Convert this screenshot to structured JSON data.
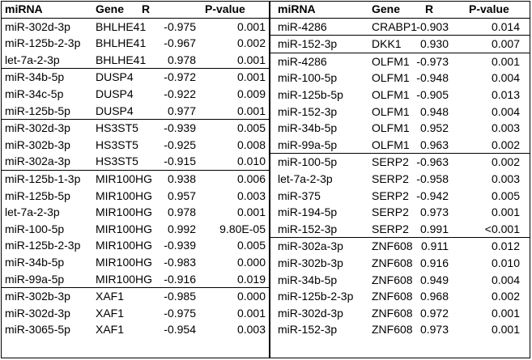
{
  "headers": {
    "mirna": "miRNA",
    "gene": "Gene",
    "r": "R",
    "p": "P-value"
  },
  "left": [
    {
      "mirna": "miR-302d-3p",
      "gene": "BHLHE41",
      "r": "-0.975",
      "p": "0.001",
      "sep": false
    },
    {
      "mirna": "miR-125b-2-3p",
      "gene": "BHLHE41",
      "r": "-0.967",
      "p": "0.002",
      "sep": false
    },
    {
      "mirna": "let-7a-2-3p",
      "gene": "BHLHE41",
      "r": "0.978",
      "p": "0.001",
      "sep": false
    },
    {
      "mirna": "miR-34b-5p",
      "gene": "DUSP4",
      "r": "-0.972",
      "p": "0.001",
      "sep": true
    },
    {
      "mirna": "miR-34c-5p",
      "gene": "DUSP4",
      "r": "-0.922",
      "p": "0.009",
      "sep": false
    },
    {
      "mirna": "miR-125b-5p",
      "gene": "DUSP4",
      "r": "0.977",
      "p": "0.001",
      "sep": false
    },
    {
      "mirna": "miR-302d-3p",
      "gene": "HS3ST5",
      "r": "-0.939",
      "p": "0.005",
      "sep": true
    },
    {
      "mirna": "miR-302b-3p",
      "gene": "HS3ST5",
      "r": "-0.925",
      "p": "0.008",
      "sep": false
    },
    {
      "mirna": "miR-302a-3p",
      "gene": "HS3ST5",
      "r": "-0.915",
      "p": "0.010",
      "sep": false
    },
    {
      "mirna": "miR-125b-1-3p",
      "gene": "MIR100HG",
      "r": "0.938",
      "p": "0.006",
      "sep": true
    },
    {
      "mirna": "miR-125b-5p",
      "gene": "MIR100HG",
      "r": "0.957",
      "p": "0.003",
      "sep": false
    },
    {
      "mirna": "let-7a-2-3p",
      "gene": "MIR100HG",
      "r": "0.978",
      "p": "0.001",
      "sep": false
    },
    {
      "mirna": "miR-100-5p",
      "gene": "MIR100HG",
      "r": "0.992",
      "p": "9.80E-05",
      "sep": false
    },
    {
      "mirna": "miR-125b-2-3p",
      "gene": "MIR100HG",
      "r": "-0.939",
      "p": "0.005",
      "sep": false
    },
    {
      "mirna": "miR-34b-5p",
      "gene": "MIR100HG",
      "r": "-0.983",
      "p": "0.000",
      "sep": false
    },
    {
      "mirna": "miR-99a-5p",
      "gene": "MIR100HG",
      "r": "-0.916",
      "p": "0.019",
      "sep": false
    },
    {
      "mirna": "miR-302b-3p",
      "gene": "XAF1",
      "r": "-0.985",
      "p": "0.000",
      "sep": true
    },
    {
      "mirna": "miR-302d-3p",
      "gene": "XAF1",
      "r": "-0.975",
      "p": "0.001",
      "sep": false
    },
    {
      "mirna": "miR-3065-5p",
      "gene": "XAF1",
      "r": "-0.954",
      "p": "0.003",
      "sep": false
    }
  ],
  "right": [
    {
      "mirna": "miR-4286",
      "gene": "CRABP1",
      "r": "-0.903",
      "p": "0.014",
      "sep": false
    },
    {
      "mirna": "miR-152-3p",
      "gene": "DKK1",
      "r": "0.930",
      "p": "0.007",
      "sep": true
    },
    {
      "mirna": "miR-4286",
      "gene": "OLFM1",
      "r": "-0.973",
      "p": "0.001",
      "sep": true
    },
    {
      "mirna": "miR-100-5p",
      "gene": "OLFM1",
      "r": "-0.948",
      "p": "0.004",
      "sep": false
    },
    {
      "mirna": "miR-125b-5p",
      "gene": "OLFM1",
      "r": "-0.905",
      "p": "0.013",
      "sep": false
    },
    {
      "mirna": "miR-152-3p",
      "gene": "OLFM1",
      "r": "0.948",
      "p": "0.004",
      "sep": false
    },
    {
      "mirna": "miR-34b-5p",
      "gene": "OLFM1",
      "r": "0.952",
      "p": "0.003",
      "sep": false
    },
    {
      "mirna": "miR-99a-5p",
      "gene": "OLFM1",
      "r": "0.963",
      "p": "0.002",
      "sep": false
    },
    {
      "mirna": "miR-100-5p",
      "gene": "SERP2",
      "r": "-0.963",
      "p": "0.002",
      "sep": true
    },
    {
      "mirna": "let-7a-2-3p",
      "gene": "SERP2",
      "r": "-0.958",
      "p": "0.003",
      "sep": false
    },
    {
      "mirna": "miR-375",
      "gene": "SERP2",
      "r": "-0.942",
      "p": "0.005",
      "sep": false
    },
    {
      "mirna": "miR-194-5p",
      "gene": "SERP2",
      "r": "0.973",
      "p": "0.001",
      "sep": false
    },
    {
      "mirna": "miR-152-3p",
      "gene": "SERP2",
      "r": "0.991",
      "p": "<0.001",
      "sep": false
    },
    {
      "mirna": "miR-302a-3p",
      "gene": "ZNF608",
      "r": "0.911",
      "p": "0.012",
      "sep": true
    },
    {
      "mirna": "miR-302b-3p",
      "gene": "ZNF608",
      "r": "0.916",
      "p": "0.010",
      "sep": false
    },
    {
      "mirna": "miR-34b-5p",
      "gene": "ZNF608",
      "r": "0.949",
      "p": "0.004",
      "sep": false
    },
    {
      "mirna": "miR-125b-2-3p",
      "gene": "ZNF608",
      "r": "0.968",
      "p": "0.002",
      "sep": false
    },
    {
      "mirna": "miR-302d-3p",
      "gene": "ZNF608",
      "r": "0.972",
      "p": "0.001",
      "sep": false
    },
    {
      "mirna": "miR-152-3p",
      "gene": "ZNF608",
      "r": "0.973",
      "p": "0.001",
      "sep": false
    }
  ]
}
